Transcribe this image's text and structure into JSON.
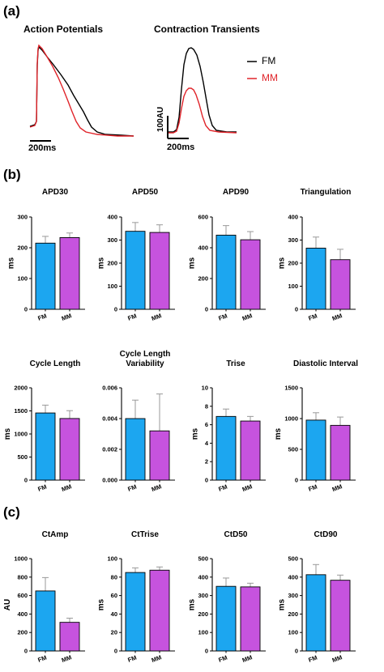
{
  "panels": {
    "a": "(a)",
    "b": "(b)",
    "c": "(c)"
  },
  "traces": {
    "ap_title": "Action Potentials",
    "ct_title": "Contraction Transients",
    "legend": [
      {
        "name": "FM",
        "color": "#000000"
      },
      {
        "name": "MM",
        "color": "#e0242a"
      }
    ],
    "ap_scale": "200ms",
    "ct_scale_x": "200ms",
    "ct_scale_y": "100AU"
  },
  "colors": {
    "FM": "#1ca6f0",
    "MM": "#c653de"
  },
  "chart_data": [
    {
      "type": "bar",
      "title": "APD30",
      "ylabel": "ms",
      "categories": [
        "FM",
        "MM"
      ],
      "values": [
        215,
        233
      ],
      "errors": [
        22,
        15
      ],
      "ylim": [
        0,
        300
      ],
      "yticks": [
        "0",
        "100",
        "200",
        "300"
      ]
    },
    {
      "type": "bar",
      "title": "APD50",
      "ylabel": "ms",
      "categories": [
        "FM",
        "MM"
      ],
      "values": [
        338,
        333
      ],
      "errors": [
        38,
        33
      ],
      "ylim": [
        0,
        400
      ],
      "yticks": [
        "0",
        "100",
        "200",
        "300",
        "400"
      ]
    },
    {
      "type": "bar",
      "title": "APD90",
      "ylabel": "ms",
      "categories": [
        "FM",
        "MM"
      ],
      "values": [
        482,
        452
      ],
      "errors": [
        62,
        53
      ],
      "ylim": [
        0,
        600
      ],
      "yticks": [
        "0",
        "200",
        "400",
        "600"
      ]
    },
    {
      "type": "bar",
      "title": "Triangulation",
      "ylabel": "ms",
      "categories": [
        "FM",
        "MM"
      ],
      "values": [
        265,
        215
      ],
      "errors": [
        48,
        45
      ],
      "ylim": [
        0,
        400
      ],
      "yticks": [
        "0",
        "100",
        "200",
        "300",
        "400"
      ]
    },
    {
      "type": "bar",
      "title": "Cycle Length",
      "ylabel": "ms",
      "categories": [
        "FM",
        "MM"
      ],
      "values": [
        1455,
        1335
      ],
      "errors": [
        170,
        170
      ],
      "ylim": [
        0,
        2000
      ],
      "yticks": [
        "0",
        "500",
        "1000",
        "1500",
        "2000"
      ]
    },
    {
      "type": "bar",
      "title": "Cycle Length\nVariability",
      "ylabel": "",
      "categories": [
        "FM",
        "MM"
      ],
      "values": [
        0.004,
        0.0032
      ],
      "errors": [
        0.0012,
        0.0024
      ],
      "ylim": [
        0,
        0.006
      ],
      "yticks": [
        "0.000",
        "0.002",
        "0.004",
        "0.006"
      ]
    },
    {
      "type": "bar",
      "title": "Trise",
      "ylabel": "ms",
      "categories": [
        "FM",
        "MM"
      ],
      "values": [
        6.9,
        6.4
      ],
      "errors": [
        0.8,
        0.5
      ],
      "ylim": [
        0,
        10
      ],
      "yticks": [
        "0",
        "2",
        "4",
        "6",
        "8",
        "10"
      ]
    },
    {
      "type": "bar",
      "title": "Diastolic Interval",
      "ylabel": "ms",
      "categories": [
        "FM",
        "MM"
      ],
      "values": [
        975,
        890
      ],
      "errors": [
        120,
        135
      ],
      "ylim": [
        0,
        1500
      ],
      "yticks": [
        "0",
        "500",
        "1000",
        "1500"
      ]
    },
    {
      "type": "bar",
      "title": "CtAmp",
      "ylabel": "AU",
      "categories": [
        "FM",
        "MM"
      ],
      "values": [
        650,
        310
      ],
      "errors": [
        145,
        45
      ],
      "ylim": [
        0,
        1000
      ],
      "yticks": [
        "0",
        "200",
        "400",
        "600",
        "800",
        "1000"
      ]
    },
    {
      "type": "bar",
      "title": "CtTrise",
      "ylabel": "ms",
      "categories": [
        "FM",
        "MM"
      ],
      "values": [
        85,
        87.5
      ],
      "errors": [
        5,
        3.5
      ],
      "ylim": [
        0,
        100
      ],
      "yticks": [
        "0",
        "20",
        "40",
        "60",
        "80",
        "100"
      ]
    },
    {
      "type": "bar",
      "title": "CtD50",
      "ylabel": "ms",
      "categories": [
        "FM",
        "MM"
      ],
      "values": [
        350,
        347
      ],
      "errors": [
        45,
        20
      ],
      "ylim": [
        0,
        500
      ],
      "yticks": [
        "0",
        "100",
        "200",
        "300",
        "400",
        "500"
      ]
    },
    {
      "type": "bar",
      "title": "CtD90",
      "ylabel": "ms",
      "categories": [
        "FM",
        "MM"
      ],
      "values": [
        413,
        383
      ],
      "errors": [
        55,
        28
      ],
      "ylim": [
        0,
        500
      ],
      "yticks": [
        "0",
        "100",
        "200",
        "300",
        "400",
        "500"
      ]
    }
  ]
}
